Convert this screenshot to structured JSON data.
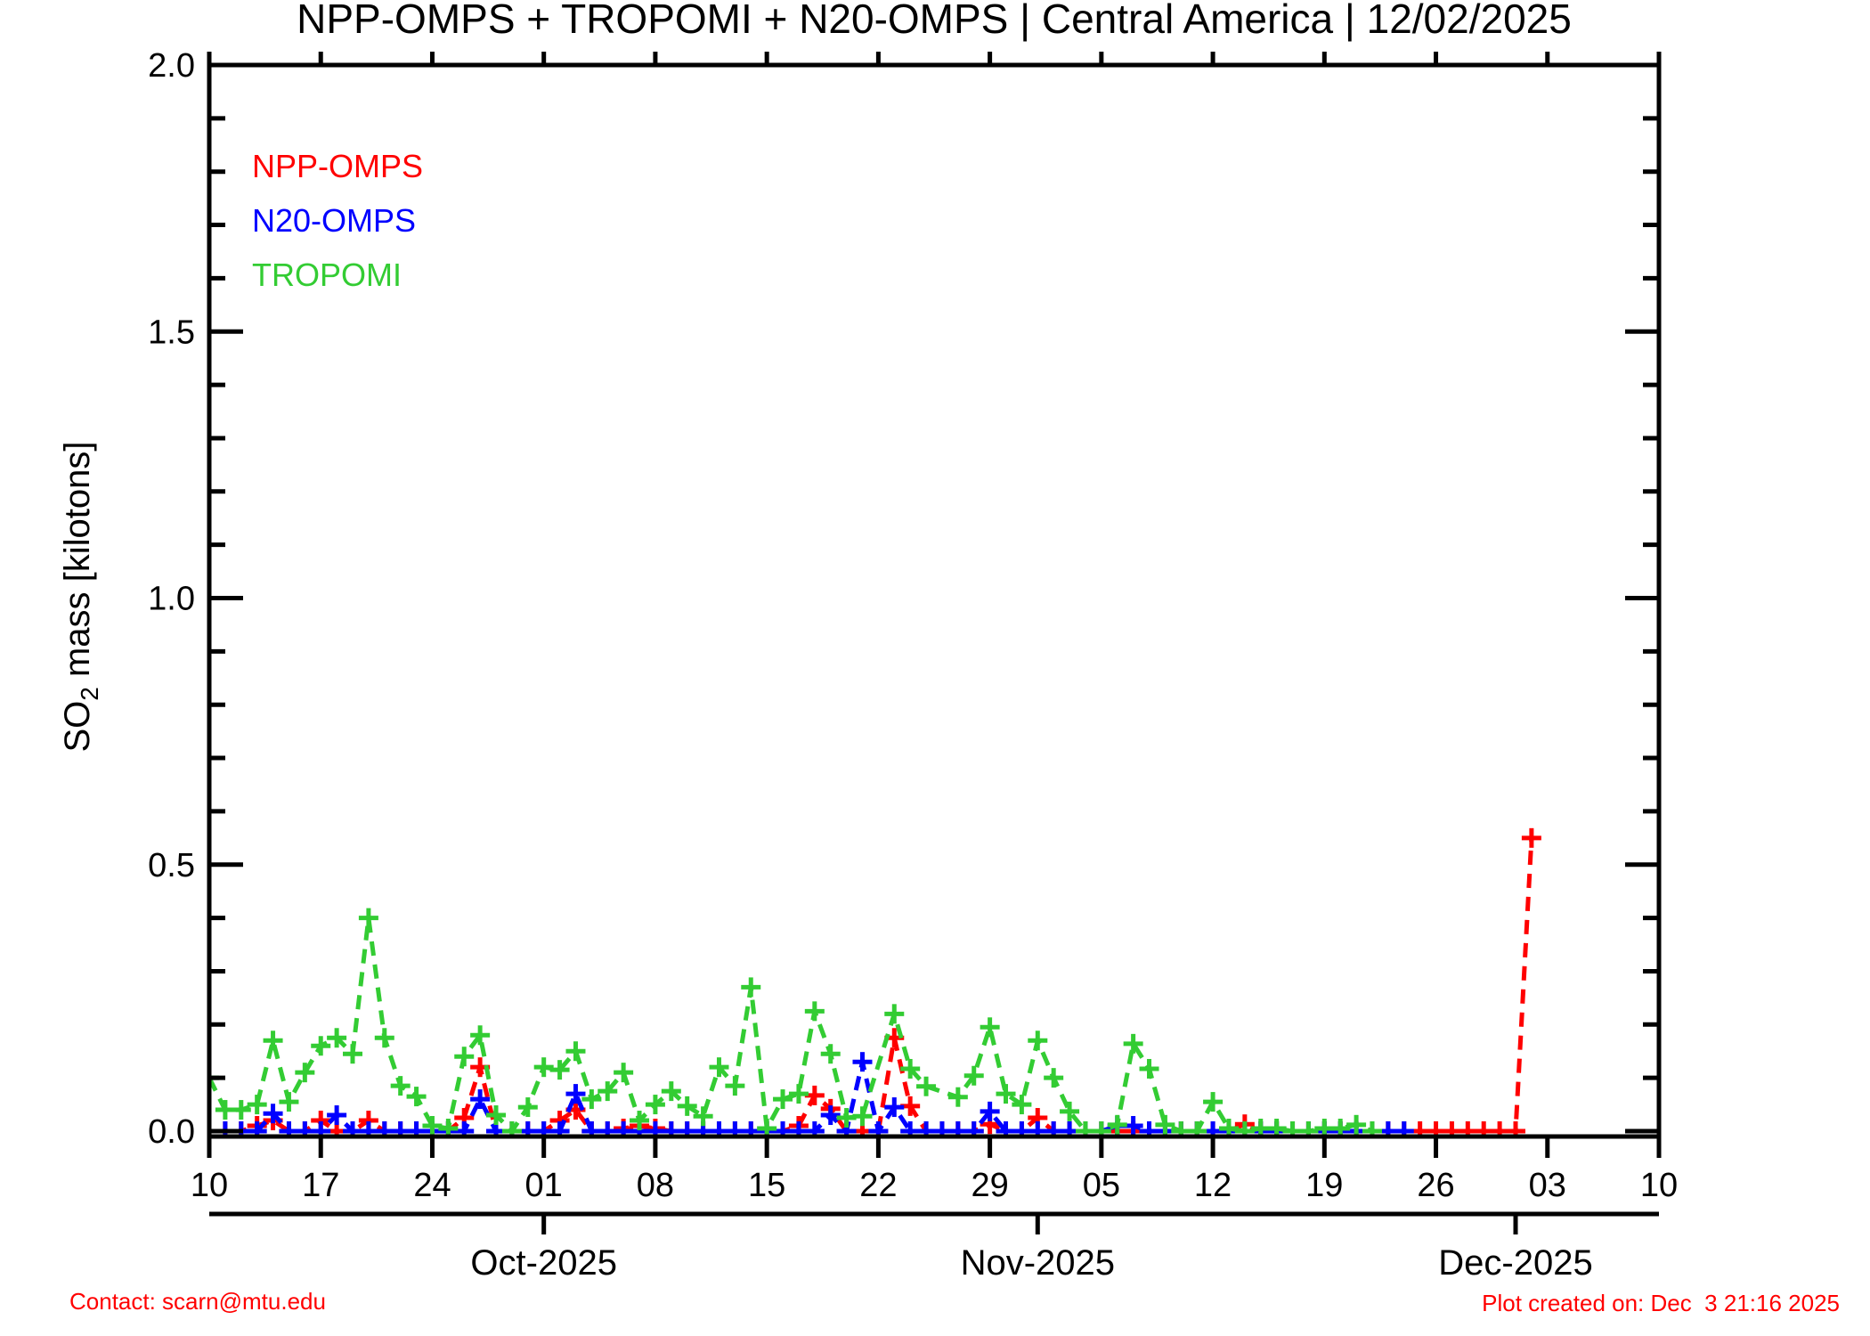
{
  "title": "NPP-OMPS + TROPOMI + N20-OMPS | Central America | 12/02/2025",
  "legend": {
    "items": [
      {
        "label": "NPP-OMPS",
        "color": "#ff0000"
      },
      {
        "label": "N20-OMPS",
        "color": "#0000ff"
      },
      {
        "label": "TROPOMI",
        "color": "#33cc33"
      }
    ]
  },
  "footer": {
    "contact": "Contact: scarn@mtu.edu",
    "created": "Plot created on: Dec  3 21:16 2025"
  },
  "colors": {
    "npp_omps": "#ff0000",
    "n20_omps": "#0000ff",
    "tropomi": "#33cc33",
    "axis": "#000000",
    "footer": "#ff0000"
  },
  "chart_data": {
    "type": "line",
    "title": "NPP-OMPS + TROPOMI + N20-OMPS | Central America | 12/02/2025",
    "xlabel": "",
    "ylabel": {
      "prefix": "SO",
      "sub": "2",
      "suffix": " mass [kilotons]"
    },
    "ylim": [
      0.0,
      2.0
    ],
    "ytick_major": [
      {
        "value": 0.0,
        "label": "0.0"
      },
      {
        "value": 0.5,
        "label": "0.5"
      },
      {
        "value": 1.0,
        "label": "1.0"
      },
      {
        "value": 1.5,
        "label": "1.5"
      },
      {
        "value": 2.0,
        "label": "2.0"
      }
    ],
    "ytick_minor_step": 0.1,
    "grid": false,
    "legend_position": "inside-top-left",
    "x_start_date": "2025-09-10",
    "x_end_date": "2025-12-10",
    "x_total_days": 91,
    "x_major_ticks": [
      {
        "day": 0,
        "label": "10"
      },
      {
        "day": 7,
        "label": "17"
      },
      {
        "day": 14,
        "label": "24"
      },
      {
        "day": 21,
        "label": "01"
      },
      {
        "day": 28,
        "label": "08"
      },
      {
        "day": 35,
        "label": "15"
      },
      {
        "day": 42,
        "label": "22"
      },
      {
        "day": 49,
        "label": "29"
      },
      {
        "day": 56,
        "label": "05"
      },
      {
        "day": 63,
        "label": "12"
      },
      {
        "day": 70,
        "label": "19"
      },
      {
        "day": 77,
        "label": "26"
      },
      {
        "day": 84,
        "label": "03"
      },
      {
        "day": 91,
        "label": "10"
      }
    ],
    "month_ticks": [
      {
        "day": 21,
        "label": "Oct-2025"
      },
      {
        "day": 52,
        "label": "Nov-2025"
      },
      {
        "day": 82,
        "label": "Dec-2025"
      }
    ],
    "series": [
      {
        "name": "NPP-OMPS",
        "color": "#ff0000",
        "linestyle": "dashed",
        "marker": "plus",
        "points": [
          [
            "09-10",
            0
          ],
          [
            "09-11",
            0
          ],
          [
            "09-12",
            0
          ],
          [
            "09-13",
            0.01
          ],
          [
            "09-14",
            0.02
          ],
          [
            "09-15",
            0
          ],
          [
            "09-16",
            0
          ],
          [
            "09-17",
            0.02
          ],
          [
            "09-18",
            0
          ],
          [
            "09-19",
            0
          ],
          [
            "09-20",
            0.02
          ],
          [
            "09-21",
            0
          ],
          [
            "09-22",
            0
          ],
          [
            "09-23",
            0
          ],
          [
            "09-24",
            0
          ],
          [
            "09-25",
            0
          ],
          [
            "09-26",
            0.025
          ],
          [
            "09-27",
            0.12
          ],
          [
            "09-28",
            0
          ],
          [
            "09-29",
            0
          ],
          [
            "09-30",
            0
          ],
          [
            "10-01",
            0
          ],
          [
            "10-02",
            0.02
          ],
          [
            "10-03",
            0.04
          ],
          [
            "10-04",
            0
          ],
          [
            "10-05",
            0
          ],
          [
            "10-06",
            0.005
          ],
          [
            "10-07",
            0.01
          ],
          [
            "10-08",
            0.005
          ],
          [
            "10-09",
            0
          ],
          [
            "10-10",
            0
          ],
          [
            "10-11",
            0
          ],
          [
            "10-12",
            0
          ],
          [
            "10-13",
            0
          ],
          [
            "10-14",
            0
          ],
          [
            "10-15",
            0
          ],
          [
            "10-16",
            0
          ],
          [
            "10-17",
            0.01
          ],
          [
            "10-18",
            0.067
          ],
          [
            "10-19",
            0.042
          ],
          [
            "10-20",
            0
          ],
          [
            "10-21",
            0
          ],
          [
            "10-22",
            0
          ],
          [
            "10-23",
            0.175
          ],
          [
            "10-24",
            0.047
          ],
          [
            "10-25",
            0
          ],
          [
            "10-26",
            0
          ],
          [
            "10-27",
            0
          ],
          [
            "10-28",
            0
          ],
          [
            "10-29",
            0.013
          ],
          [
            "10-30",
            0
          ],
          [
            "10-31",
            0
          ],
          [
            "11-01",
            0.025
          ],
          [
            "11-02",
            0
          ],
          [
            "11-03",
            0
          ],
          [
            "11-04",
            0
          ],
          [
            "11-05",
            0
          ],
          [
            "11-06",
            0
          ],
          [
            "11-07",
            0
          ],
          [
            "11-08",
            0
          ],
          [
            "11-09",
            0
          ],
          [
            "11-10",
            0
          ],
          [
            "11-11",
            0
          ],
          [
            "11-12",
            0
          ],
          [
            "11-13",
            0
          ],
          [
            "11-14",
            0.013
          ],
          [
            "11-15",
            0
          ],
          [
            "11-16",
            0
          ],
          [
            "11-17",
            0
          ],
          [
            "11-18",
            0
          ],
          [
            "11-19",
            0
          ],
          [
            "11-20",
            0
          ],
          [
            "11-21",
            0
          ],
          [
            "11-22",
            0
          ],
          [
            "11-23",
            0
          ],
          [
            "11-24",
            0
          ],
          [
            "11-25",
            0
          ],
          [
            "11-26",
            0
          ],
          [
            "11-27",
            0
          ],
          [
            "11-28",
            0
          ],
          [
            "11-29",
            0
          ],
          [
            "11-30",
            0
          ],
          [
            "12-01",
            0
          ],
          [
            "12-02",
            0.55
          ]
        ]
      },
      {
        "name": "N20-OMPS",
        "color": "#0000ff",
        "linestyle": "dashed",
        "marker": "plus",
        "points": [
          [
            "09-10",
            0
          ],
          [
            "09-11",
            0
          ],
          [
            "09-12",
            0
          ],
          [
            "09-13",
            0
          ],
          [
            "09-14",
            0.033
          ],
          [
            "09-15",
            0
          ],
          [
            "09-16",
            0
          ],
          [
            "09-17",
            0
          ],
          [
            "09-18",
            0.03
          ],
          [
            "09-19",
            0
          ],
          [
            "09-20",
            0
          ],
          [
            "09-21",
            0
          ],
          [
            "09-22",
            0
          ],
          [
            "09-23",
            0
          ],
          [
            "09-24",
            0
          ],
          [
            "09-25",
            0
          ],
          [
            "09-26",
            0
          ],
          [
            "09-27",
            0.06
          ],
          [
            "09-28",
            0
          ],
          [
            "09-29",
            0
          ],
          [
            "09-30",
            0
          ],
          [
            "10-01",
            0
          ],
          [
            "10-02",
            0
          ],
          [
            "10-03",
            0.07
          ],
          [
            "10-04",
            0
          ],
          [
            "10-05",
            0
          ],
          [
            "10-06",
            0
          ],
          [
            "10-07",
            0
          ],
          [
            "10-08",
            0
          ],
          [
            "10-09",
            0
          ],
          [
            "10-10",
            0
          ],
          [
            "10-11",
            0
          ],
          [
            "10-12",
            0
          ],
          [
            "10-13",
            0
          ],
          [
            "10-14",
            0
          ],
          [
            "10-15",
            0
          ],
          [
            "10-16",
            0
          ],
          [
            "10-17",
            0
          ],
          [
            "10-18",
            0
          ],
          [
            "10-19",
            0.03
          ],
          [
            "10-20",
            0
          ],
          [
            "10-21",
            0.13
          ],
          [
            "10-22",
            0
          ],
          [
            "10-23",
            0.045
          ],
          [
            "10-24",
            0
          ],
          [
            "10-25",
            0
          ],
          [
            "10-26",
            0
          ],
          [
            "10-27",
            0
          ],
          [
            "10-28",
            0
          ],
          [
            "10-29",
            0.037
          ],
          [
            "10-30",
            0
          ],
          [
            "10-31",
            0
          ],
          [
            "11-01",
            0
          ],
          [
            "11-02",
            0
          ],
          [
            "11-03",
            0
          ],
          [
            "11-04",
            0
          ],
          [
            "11-05",
            0
          ],
          [
            "11-06",
            0.01
          ],
          [
            "11-07",
            0.01
          ],
          [
            "11-08",
            0
          ],
          [
            "11-09",
            0
          ],
          [
            "11-10",
            0
          ],
          [
            "11-11",
            0
          ],
          [
            "11-12",
            0
          ],
          [
            "11-13",
            0
          ],
          [
            "11-14",
            0
          ],
          [
            "11-15",
            0
          ],
          [
            "11-16",
            0
          ],
          [
            "11-17",
            0
          ],
          [
            "11-18",
            0
          ],
          [
            "11-19",
            0
          ],
          [
            "11-20",
            0
          ],
          [
            "11-21",
            0
          ],
          [
            "11-22",
            0
          ],
          [
            "11-23",
            0
          ],
          [
            "11-24",
            0
          ]
        ]
      },
      {
        "name": "TROPOMI",
        "color": "#33cc33",
        "linestyle": "dashed",
        "marker": "plus",
        "points": [
          [
            "09-10",
            0.1
          ],
          [
            "09-11",
            0.04
          ],
          [
            "09-12",
            0.04
          ],
          [
            "09-13",
            0.05
          ],
          [
            "09-14",
            0.17
          ],
          [
            "09-15",
            0.055
          ],
          [
            "09-16",
            0.11
          ],
          [
            "09-17",
            0.16
          ],
          [
            "09-18",
            0.175
          ],
          [
            "09-19",
            0.145
          ],
          [
            "09-20",
            0.4
          ],
          [
            "09-21",
            0.175
          ],
          [
            "09-22",
            0.085
          ],
          [
            "09-23",
            0.065
          ],
          [
            "09-24",
            0.01
          ],
          [
            "09-25",
            0.005
          ],
          [
            "09-26",
            0.14
          ],
          [
            "09-27",
            0.18
          ],
          [
            "09-28",
            0.03
          ],
          [
            "09-29",
            0
          ],
          [
            "09-30",
            0.045
          ],
          [
            "10-01",
            0.12
          ],
          [
            "10-02",
            0.115
          ],
          [
            "10-03",
            0.15
          ],
          [
            "10-04",
            0.06
          ],
          [
            "10-05",
            0.075
          ],
          [
            "10-06",
            0.11
          ],
          [
            "10-07",
            0.02
          ],
          [
            "10-08",
            0.05
          ],
          [
            "10-09",
            0.075
          ],
          [
            "10-10",
            0.047
          ],
          [
            "10-11",
            0.028
          ],
          [
            "10-12",
            0.12
          ],
          [
            "10-13",
            0.085
          ],
          [
            "10-14",
            0.27
          ],
          [
            "10-15",
            0.005
          ],
          [
            "10-16",
            0.06
          ],
          [
            "10-17",
            0.07
          ],
          [
            "10-18",
            0.225
          ],
          [
            "10-19",
            0.145
          ],
          [
            "10-20",
            0.025
          ],
          [
            "10-21",
            0.028
          ],
          [
            "10-23",
            0.22
          ],
          [
            "10-24",
            0.117
          ],
          [
            "10-25",
            0.084
          ],
          [
            "10-27",
            0.064
          ],
          [
            "10-28",
            0.104
          ],
          [
            "10-29",
            0.195
          ],
          [
            "10-30",
            0.07
          ],
          [
            "10-31",
            0.05
          ],
          [
            "11-01",
            0.17
          ],
          [
            "11-02",
            0.1
          ],
          [
            "11-03",
            0.037
          ],
          [
            "11-04",
            0
          ],
          [
            "11-05",
            0
          ],
          [
            "11-06",
            0.012
          ],
          [
            "11-07",
            0.164
          ],
          [
            "11-08",
            0.117
          ],
          [
            "11-09",
            0.012
          ],
          [
            "11-10",
            0
          ],
          [
            "11-11",
            0
          ],
          [
            "11-12",
            0.055
          ],
          [
            "11-13",
            0.005
          ],
          [
            "11-14",
            0
          ],
          [
            "11-15",
            0.005
          ],
          [
            "11-16",
            0.005
          ],
          [
            "11-17",
            0
          ],
          [
            "11-18",
            0
          ],
          [
            "11-19",
            0.005
          ],
          [
            "11-20",
            0.005
          ],
          [
            "11-21",
            0.012
          ],
          [
            "11-22",
            0
          ]
        ]
      }
    ]
  }
}
